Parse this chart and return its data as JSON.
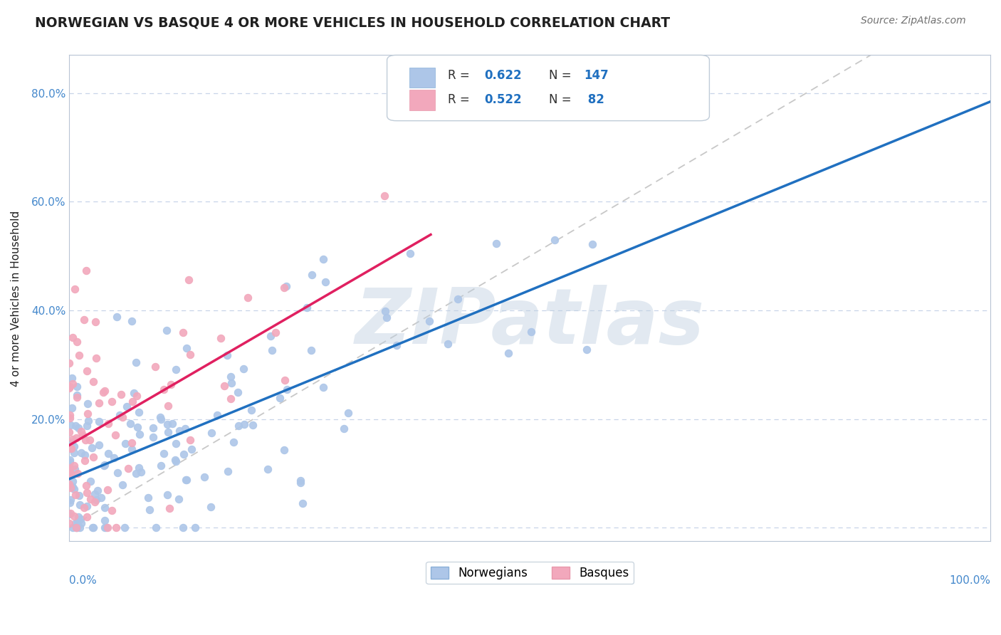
{
  "title": "NORWEGIAN VS BASQUE 4 OR MORE VEHICLES IN HOUSEHOLD CORRELATION CHART",
  "source": "Source: ZipAtlas.com",
  "ylabel": "4 or more Vehicles in Household",
  "watermark": "ZIPatlas",
  "R_norwegian": 0.622,
  "N_norwegian": 147,
  "R_basque": 0.522,
  "N_basque": 82,
  "norwegian_color": "#adc6e8",
  "basque_color": "#f2a8bc",
  "norwegian_line_color": "#2070c0",
  "basque_line_color": "#e02060",
  "ref_line_color": "#c8c8c8",
  "background_color": "#ffffff",
  "grid_color": "#c8d4e8",
  "title_color": "#202020",
  "source_color": "#707070",
  "axis_label_color": "#4488cc",
  "watermark_color": "#c0d0e0",
  "xmin": 0.0,
  "xmax": 1.0,
  "ymin": -0.025,
  "ymax": 0.87,
  "norwegian_seed": 42,
  "basque_seed": 7
}
